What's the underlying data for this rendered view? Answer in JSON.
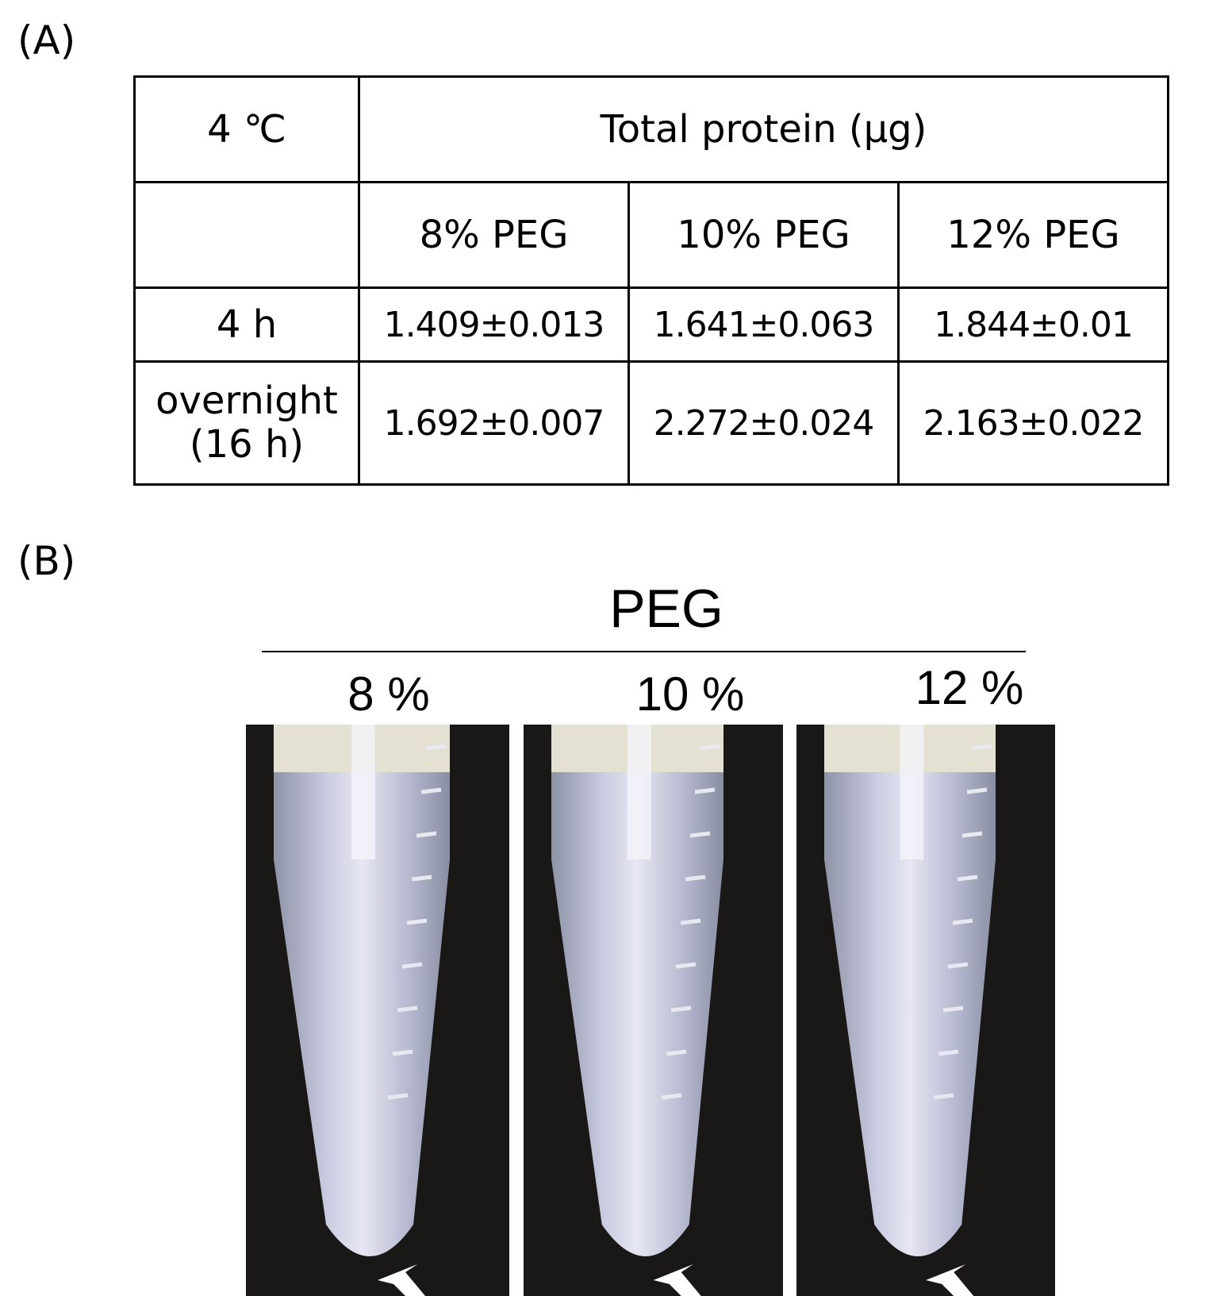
{
  "panel_a": {
    "label": "(A)",
    "table": {
      "corner": "4 ℃",
      "group_header": "Total protein (μg)",
      "columns": [
        "8% PEG",
        "10% PEG",
        "12% PEG"
      ],
      "rows": [
        {
          "label": "4 h",
          "cells": [
            "1.409±0.013",
            "1.641±0.063",
            "1.844±0.01"
          ]
        },
        {
          "label": "overnight (16 h)",
          "cells": [
            "1.692±0.007",
            "2.272±0.024",
            "2.163±0.022"
          ]
        }
      ]
    }
  },
  "panel_b": {
    "label": "(B)",
    "title": "PEG",
    "tubes": [
      "8 %",
      "10 %",
      "12 %"
    ]
  }
}
